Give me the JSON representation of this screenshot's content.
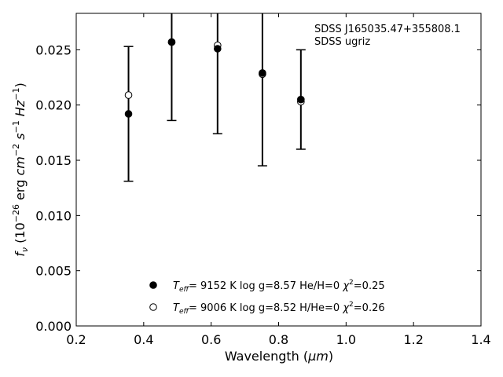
{
  "chart_data": {
    "type": "scatter",
    "xlabel_prefix": "Wavelength (",
    "xlabel_unit": "μm",
    "xlabel_suffix": ")",
    "xlim": [
      0.2,
      1.4
    ],
    "ylim": [
      0.0,
      0.0283
    ],
    "x_ticks": [
      "0.2",
      "0.4",
      "0.6",
      "0.8",
      "1.0",
      "1.2",
      "1.4"
    ],
    "y_ticks": [
      "0.000",
      "0.005",
      "0.010",
      "0.015",
      "0.020",
      "0.025"
    ],
    "annotation_lines": [
      "SDSS J165035.47+355808.1",
      "SDSS ugriz"
    ],
    "observed": {
      "x": [
        0.355,
        0.483,
        0.619,
        0.752,
        0.866
      ],
      "y": [
        0.0192,
        0.0257,
        0.0251,
        0.0229,
        0.0205
      ],
      "err": [
        0.0061,
        0.0071,
        0.0077,
        0.0084,
        0.0045
      ]
    },
    "series": [
      {
        "name": "T_eff=  9152 K  log g=8.57  He/H=0  χ²=0.25",
        "marker": "filled-circle",
        "color": "#000000",
        "x": [
          0.355,
          0.483,
          0.619,
          0.752,
          0.866
        ],
        "y": [
          0.0192,
          0.0257,
          0.0251,
          0.0229,
          0.0205
        ]
      },
      {
        "name": "T_eff=  9006 K  log g=8.52  H/He=0  χ²=0.26",
        "marker": "open-circle",
        "color": "#000000",
        "x": [
          0.355,
          0.483,
          0.619,
          0.752,
          0.866
        ],
        "y": [
          0.0209,
          0.0257,
          0.0254,
          0.0228,
          0.0203
        ]
      }
    ],
    "legend": [
      {
        "teff": "9152 K",
        "logg": "log g=8.57",
        "comp": "He/H=0",
        "chi2": "=0.25"
      },
      {
        "teff": "9006 K",
        "logg": "log g=8.52",
        "comp": "H/He=0",
        "chi2": "=0.26"
      }
    ]
  }
}
